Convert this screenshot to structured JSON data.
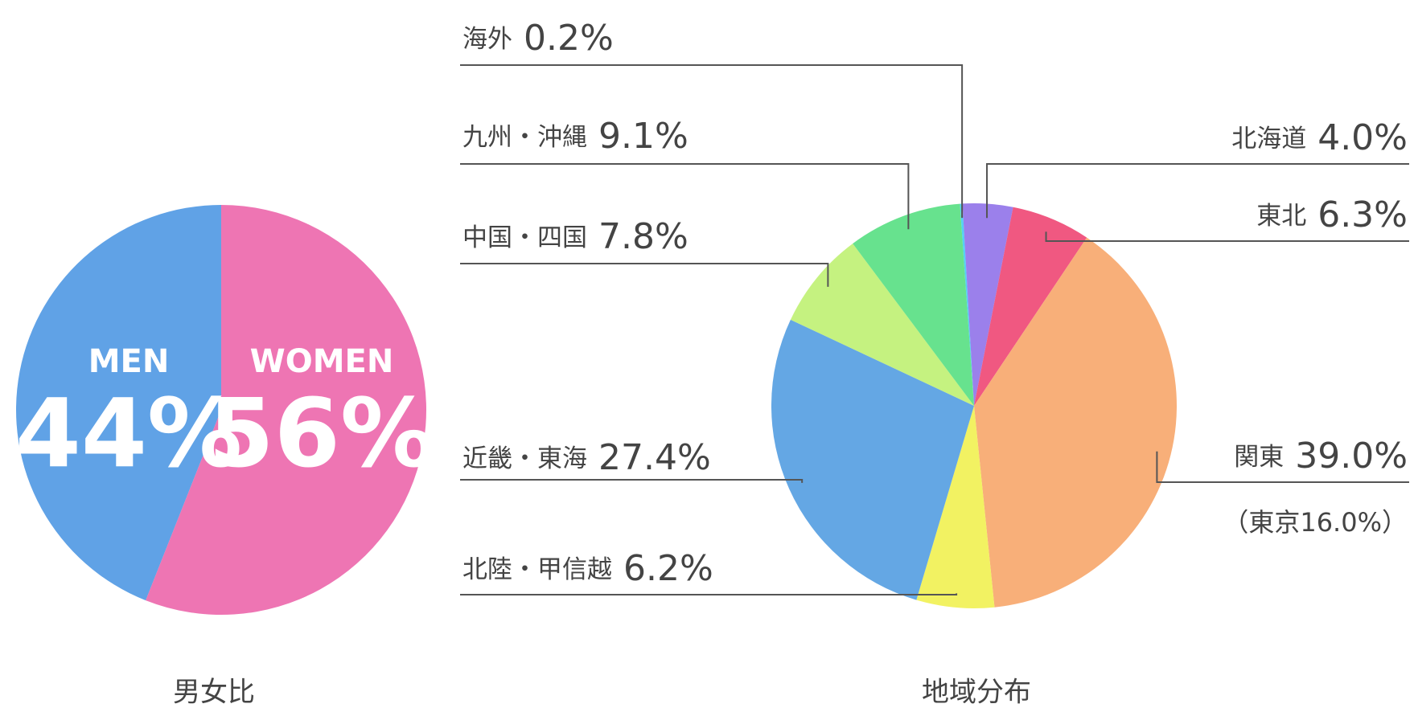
{
  "chart_data": [
    {
      "type": "pie",
      "title": "男女比",
      "categories": [
        "MEN",
        "WOMEN"
      ],
      "values": [
        44,
        56
      ],
      "value_labels": [
        "44%",
        "56%"
      ],
      "colors": [
        "#4a95e2",
        "#ec62a9"
      ]
    },
    {
      "type": "pie",
      "title": "地域分布",
      "categories": [
        "海外",
        "北海道",
        "東北",
        "関東",
        "北陸・甲信越",
        "近畿・東海",
        "中国・四国",
        "九州・沖縄"
      ],
      "values": [
        0.2,
        4.0,
        6.3,
        39.0,
        6.2,
        27.4,
        7.8,
        9.1
      ],
      "value_labels": [
        "0.2%",
        "4.0%",
        "6.3%",
        "39.0%",
        "6.2%",
        "27.4%",
        "7.8%",
        "9.1%"
      ],
      "colors": [
        "#3dcaf2",
        "#8d6ee8",
        "#ee416f",
        "#f7a466",
        "#f0f04c",
        "#4f9be0",
        "#bdf06e",
        "#52de7e"
      ],
      "annotation": "（東京16.0%）"
    }
  ]
}
